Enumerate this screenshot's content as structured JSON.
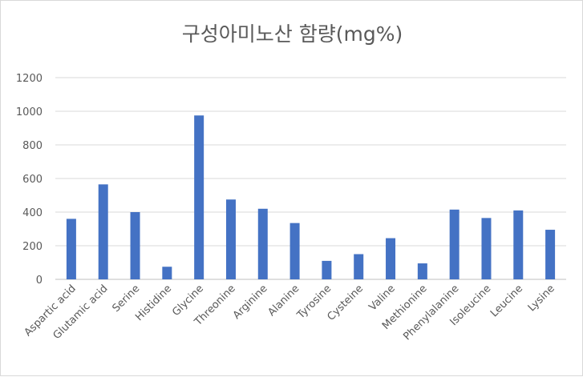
{
  "chart_data": {
    "type": "bar",
    "title": "구성아미노산 함량(mg%)",
    "xlabel": "",
    "ylabel": "",
    "ylim": [
      0,
      1200
    ],
    "yticks": [
      0,
      200,
      400,
      600,
      800,
      1000,
      1200
    ],
    "grid": true,
    "legend": "none",
    "bar_color": "#4472c4",
    "categories": [
      "Aspartic acid",
      "Glutamic acid",
      "Serine",
      "Histidine",
      "Glycine",
      "Threonine",
      "Arginine",
      "Alanine",
      "Tyrosine",
      "Cysteine",
      "Valine",
      "Methionine",
      "Phenylalanine",
      "Isoleucine",
      "Leucine",
      "Lysine"
    ],
    "values": [
      360,
      565,
      400,
      75,
      975,
      475,
      420,
      335,
      110,
      150,
      245,
      95,
      415,
      365,
      410,
      295
    ]
  }
}
